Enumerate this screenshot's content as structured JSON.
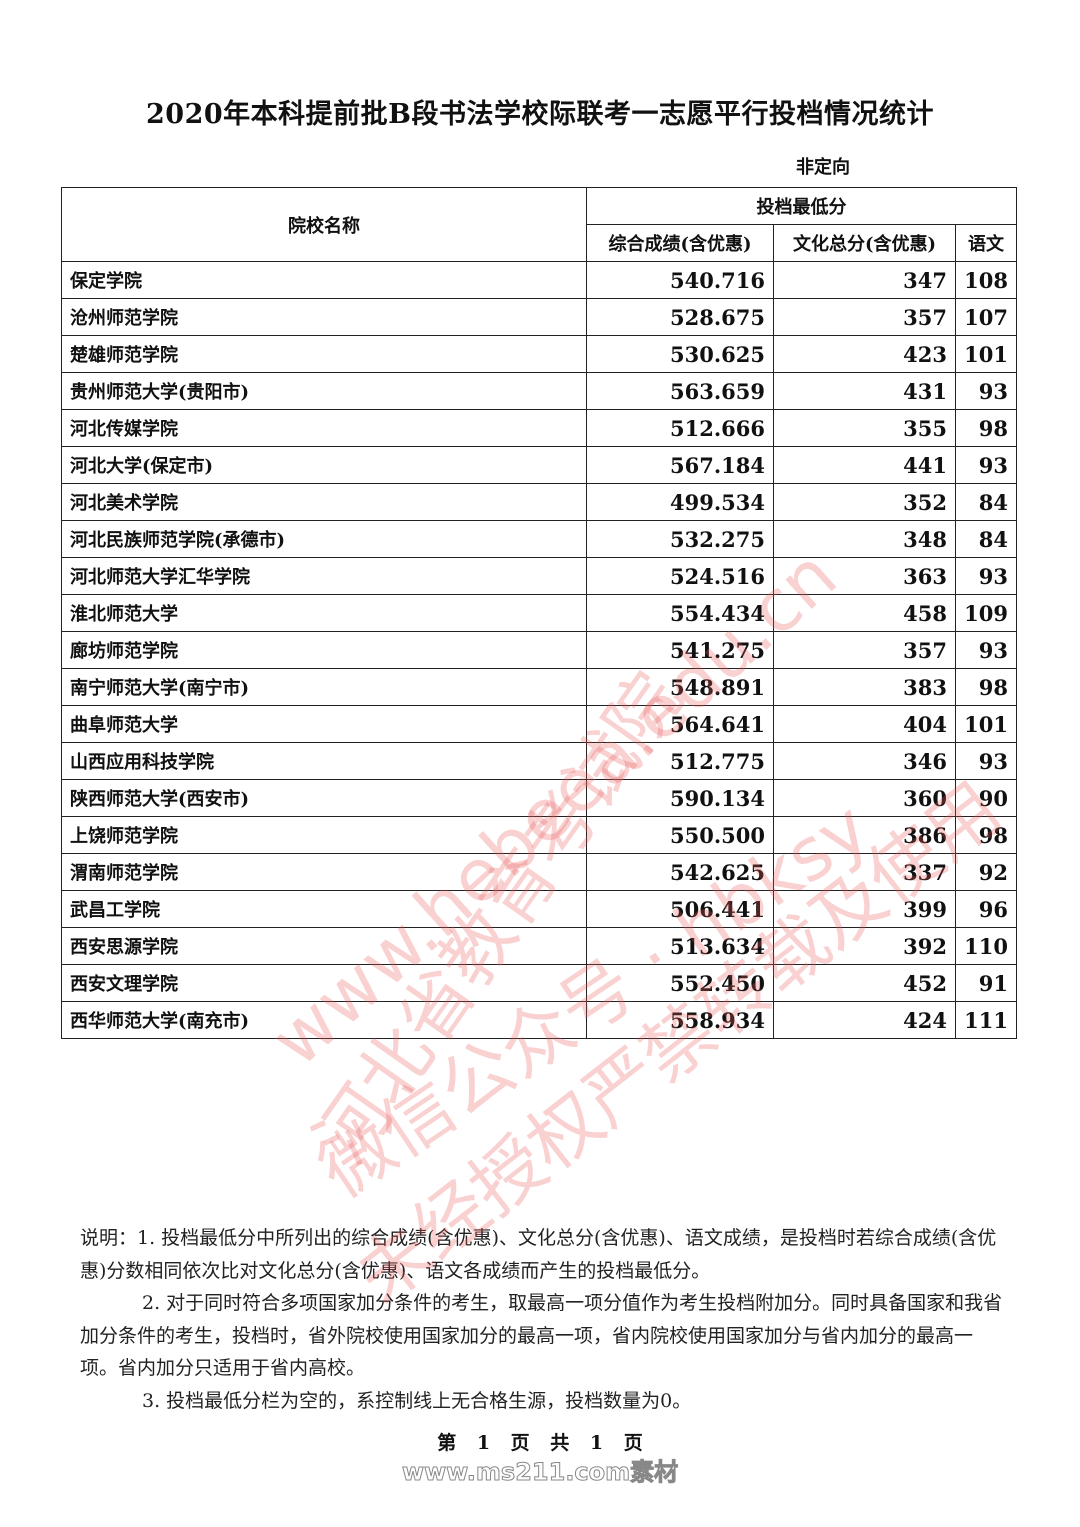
{
  "title": "2020年本科提前批B段书法学校际联考一志愿平行投档情况统计",
  "subtitle": "非定向",
  "table": {
    "headers": {
      "name": "院校名称",
      "group": "投档最低分",
      "cols": [
        "综合成绩(含优惠)",
        "文化总分(含优惠)",
        "语文"
      ]
    },
    "rows": [
      [
        "保定学院",
        "540.716",
        "347",
        "108"
      ],
      [
        "沧州师范学院",
        "528.675",
        "357",
        "107"
      ],
      [
        "楚雄师范学院",
        "530.625",
        "423",
        "101"
      ],
      [
        "贵州师范大学(贵阳市)",
        "563.659",
        "431",
        "93"
      ],
      [
        "河北传媒学院",
        "512.666",
        "355",
        "98"
      ],
      [
        "河北大学(保定市)",
        "567.184",
        "441",
        "93"
      ],
      [
        "河北美术学院",
        "499.534",
        "352",
        "84"
      ],
      [
        "河北民族师范学院(承德市)",
        "532.275",
        "348",
        "84"
      ],
      [
        "河北师范大学汇华学院",
        "524.516",
        "363",
        "93"
      ],
      [
        "淮北师范大学",
        "554.434",
        "458",
        "109"
      ],
      [
        "廊坊师范学院",
        "541.275",
        "357",
        "93"
      ],
      [
        "南宁师范大学(南宁市)",
        "548.891",
        "383",
        "98"
      ],
      [
        "曲阜师范大学",
        "564.641",
        "404",
        "101"
      ],
      [
        "山西应用科技学院",
        "512.775",
        "346",
        "93"
      ],
      [
        "陕西师范大学(西安市)",
        "590.134",
        "360",
        "90"
      ],
      [
        "上饶师范学院",
        "550.500",
        "386",
        "98"
      ],
      [
        "渭南师范学院",
        "542.625",
        "337",
        "92"
      ],
      [
        "武昌工学院",
        "506.441",
        "399",
        "96"
      ],
      [
        "西安思源学院",
        "513.634",
        "392",
        "110"
      ],
      [
        "西安文理学院",
        "552.450",
        "452",
        "91"
      ],
      [
        "西华师范大学(南充市)",
        "558.934",
        "424",
        "111"
      ]
    ]
  },
  "notes": [
    "说明：1. 投档最低分中所列出的综合成绩(含优惠)、文化总分(含优惠)、语文成绩，是投档时若综合成绩(含优惠)分数相同依次比对文化总分(含优惠)、语文各成绩而产生的投档最低分。",
    "2. 对于同时符合多项国家加分条件的考生，取最高一项分值作为考生投档附加分。同时具备国家和我省加分条件的考生，投档时，省外院校使用国家加分的最高一项，省内院校使用国家加分与省内加分的最高一项。省内加分只适用于省内高校。",
    "3. 投档最低分栏为空的，系控制线上无合格生源，投档数量为0。"
  ],
  "footer": "第 1 页 共 1 页",
  "watermarks": [
    "河北省教育考试院",
    "www.hebeea.edu.cn",
    "微信公众号：hbksy",
    "未经授权严禁转载及使用",
    "www.ms211.com素材"
  ],
  "watermark_color": "#eb5a5a"
}
